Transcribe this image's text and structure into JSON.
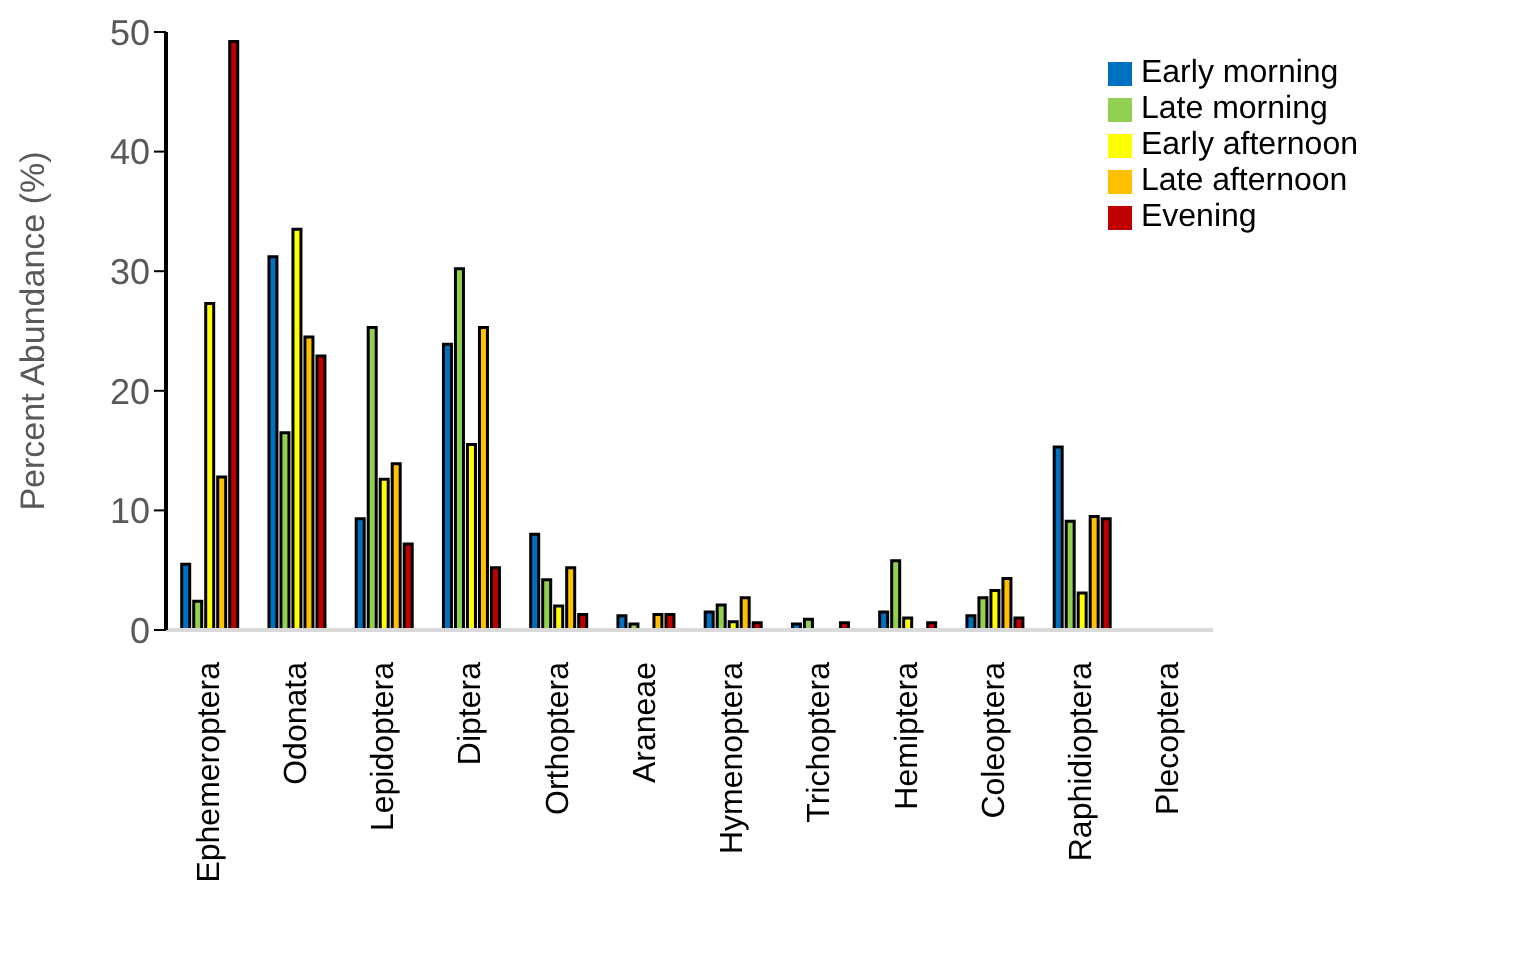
{
  "chart_data": {
    "type": "bar",
    "ylabel": "Percent Abundance (%)",
    "categories": [
      "Ephemeroptera",
      "Odonata",
      "Lepidoptera",
      "Diptera",
      "Orthoptera",
      "Araneae",
      "Hymenoptera",
      "Trichoptera",
      "Hemiptera",
      "Coleoptera",
      "Raphidioptera",
      "Plecoptera"
    ],
    "series": [
      {
        "name": "Early morning",
        "color": "#0070c0",
        "values": [
          5.5,
          31.2,
          9.3,
          23.9,
          8.0,
          1.2,
          1.5,
          0.5,
          1.5,
          1.2,
          15.3,
          null
        ]
      },
      {
        "name": "Late morning",
        "color": "#92d050",
        "values": [
          2.4,
          16.5,
          25.3,
          30.2,
          4.2,
          0.5,
          2.1,
          0.9,
          5.8,
          2.7,
          9.1,
          0
        ]
      },
      {
        "name": "Early afternoon",
        "color": "#ffff00",
        "values": [
          27.3,
          33.5,
          12.6,
          15.5,
          2.0,
          null,
          0.7,
          null,
          1.0,
          3.3,
          3.1,
          0
        ]
      },
      {
        "name": "Late afternoon",
        "color": "#ffc000",
        "values": [
          12.8,
          24.5,
          13.9,
          25.3,
          5.2,
          1.3,
          2.7,
          0,
          null,
          4.3,
          9.5,
          0
        ]
      },
      {
        "name": "Evening",
        "color": "#c00000",
        "values": [
          49.2,
          22.9,
          7.2,
          5.2,
          1.3,
          1.3,
          0.6,
          0.6,
          0.6,
          1.0,
          9.3,
          null
        ]
      }
    ],
    "ylim": [
      0,
      50
    ],
    "yticks": [
      0,
      10,
      20,
      30,
      40,
      50
    ],
    "grid": false,
    "legend": "top right"
  }
}
